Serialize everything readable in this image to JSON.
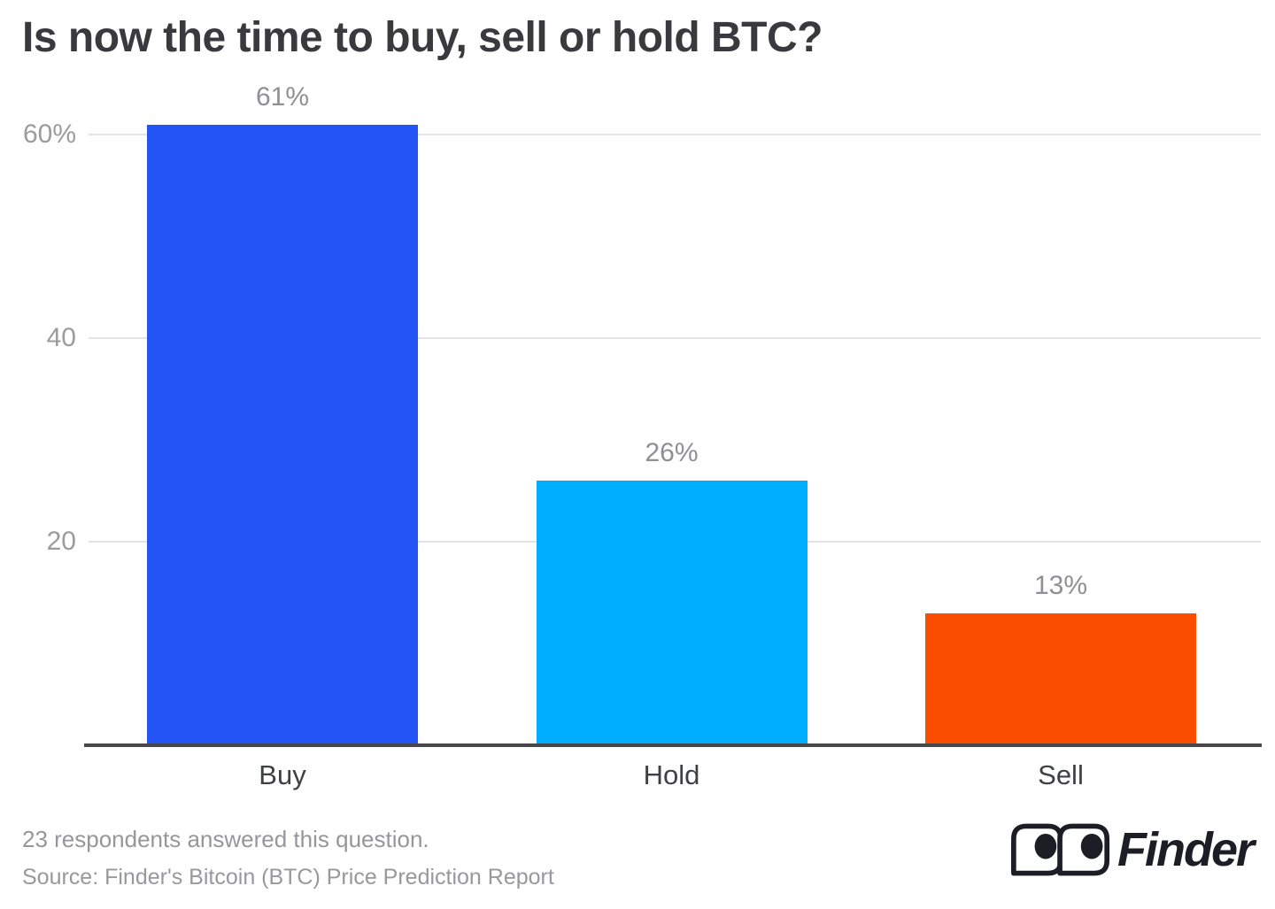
{
  "chart": {
    "title": "Is now the time to buy, sell or hold BTC?"
  },
  "chart_data": {
    "type": "bar",
    "categories": [
      "Buy",
      "Hold",
      "Sell"
    ],
    "values": [
      61,
      26,
      13
    ],
    "value_labels": [
      "61%",
      "26%",
      "13%"
    ],
    "bar_colors": [
      "#2255f4",
      "#00aeff",
      "#fb4d00"
    ],
    "title": "Is now the time to buy, sell or hold BTC?",
    "xlabel": "",
    "ylabel": "",
    "yticks": [
      {
        "value": 20,
        "label": "20"
      },
      {
        "value": 40,
        "label": "40"
      },
      {
        "value": 60,
        "label": "60%"
      }
    ],
    "ylim": [
      0,
      64.5
    ],
    "grid": true,
    "legend": false
  },
  "footer": {
    "note": "23 respondents answered this question.",
    "source": "Source: Finder's Bitcoin (BTC) Price Prediction Report",
    "logo_text": "Finder"
  },
  "colors": {
    "title_text": "#3a3a3e",
    "category_label": "#3f4045",
    "tick_label": "#9b9ba0",
    "value_label": "#8f8f95",
    "gridline": "#e4e4e7",
    "axis_line": "#48484c",
    "footer_text": "#96969b",
    "logo": "#1d1d25"
  }
}
